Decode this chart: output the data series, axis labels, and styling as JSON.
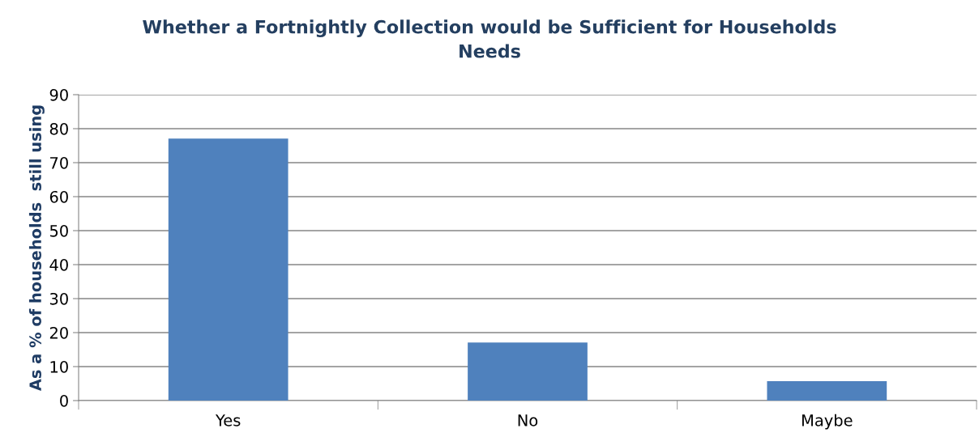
{
  "chart_data": {
    "type": "bar",
    "title": "Whether a Fortnightly Collection would be Sufficient for Households\nNeeds",
    "ylabel": "As a % of households  still using",
    "categories": [
      "Yes",
      "No",
      "Maybe"
    ],
    "values": [
      77.1,
      17.1,
      5.7
    ],
    "color": "#4f81bd",
    "ylim": [
      0,
      90
    ],
    "yticks": [
      0,
      10,
      20,
      30,
      40,
      50,
      60,
      70,
      80,
      90
    ],
    "grid": "y"
  }
}
